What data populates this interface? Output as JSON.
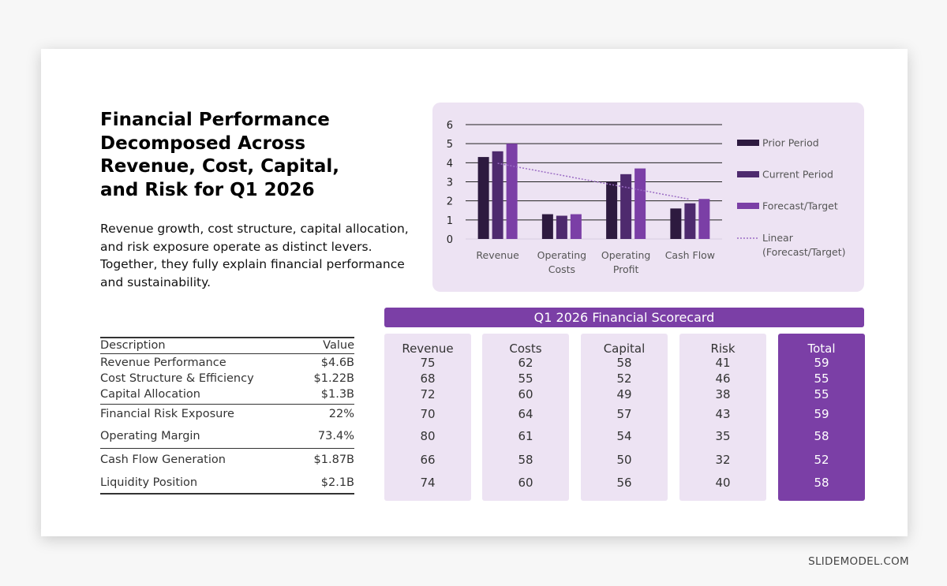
{
  "title": "Financial Performance Decomposed Across Revenue, Cost, Capital, and Risk for Q1 2026",
  "subtitle": "Revenue growth, cost structure, capital allocation, and risk exposure operate as distinct levers. Together, they fully explain financial performance and sustainability.",
  "chart_data": {
    "type": "bar",
    "categories": [
      "Revenue",
      "Operating Costs",
      "Operating Profit",
      "Cash Flow"
    ],
    "series": [
      {
        "name": "Prior Period",
        "values": [
          4.3,
          1.3,
          3.0,
          1.6
        ],
        "color": "#2d1a3f"
      },
      {
        "name": "Current Period",
        "values": [
          4.6,
          1.22,
          3.4,
          1.87
        ],
        "color": "#4e2a6e"
      },
      {
        "name": "Forecast/Target",
        "values": [
          5.0,
          1.3,
          3.7,
          2.1
        ],
        "color": "#7b3fa6"
      }
    ],
    "trendline": {
      "name": "Linear (Forecast/Target)",
      "of_series": "Forecast/Target",
      "type": "linear",
      "color": "#9b6cc4"
    },
    "ylim": [
      0,
      6
    ],
    "yticks": [
      "0",
      "1",
      "2",
      "3",
      "4",
      "5",
      "6"
    ],
    "grid": true,
    "legend": "right"
  },
  "left_table": {
    "headers": {
      "description": "Description",
      "value": "Value"
    },
    "rows": [
      {
        "description": "Revenue Performance",
        "value": "$4.6B"
      },
      {
        "description": "Cost Structure & Efficiency",
        "value": "$1.22B"
      },
      {
        "description": "Capital Allocation",
        "value": "$1.3B"
      },
      {
        "description": "Financial Risk Exposure",
        "value": "22%"
      },
      {
        "description": "Operating Margin",
        "value": "73.4%"
      },
      {
        "description": "Cash Flow Generation",
        "value": "$1.87B"
      },
      {
        "description": "Liquidity Position",
        "value": "$2.1B"
      }
    ]
  },
  "scorecard": {
    "title": "Q1 2026 Financial Scorecard",
    "columns": [
      {
        "header": "Revenue",
        "values": [
          "75",
          "68",
          "72",
          "70",
          "80",
          "66",
          "74"
        ]
      },
      {
        "header": "Costs",
        "values": [
          "62",
          "55",
          "60",
          "64",
          "61",
          "58",
          "60"
        ]
      },
      {
        "header": "Capital",
        "values": [
          "58",
          "52",
          "49",
          "57",
          "54",
          "50",
          "56"
        ]
      },
      {
        "header": "Risk",
        "values": [
          "41",
          "46",
          "38",
          "43",
          "35",
          "32",
          "40"
        ]
      },
      {
        "header": "Total",
        "values": [
          "59",
          "55",
          "55",
          "59",
          "58",
          "52",
          "58"
        ]
      }
    ],
    "accent_color": "#7b3fa6",
    "light_color": "#ede3f3"
  },
  "footer": "SLIDEMODEL.COM"
}
